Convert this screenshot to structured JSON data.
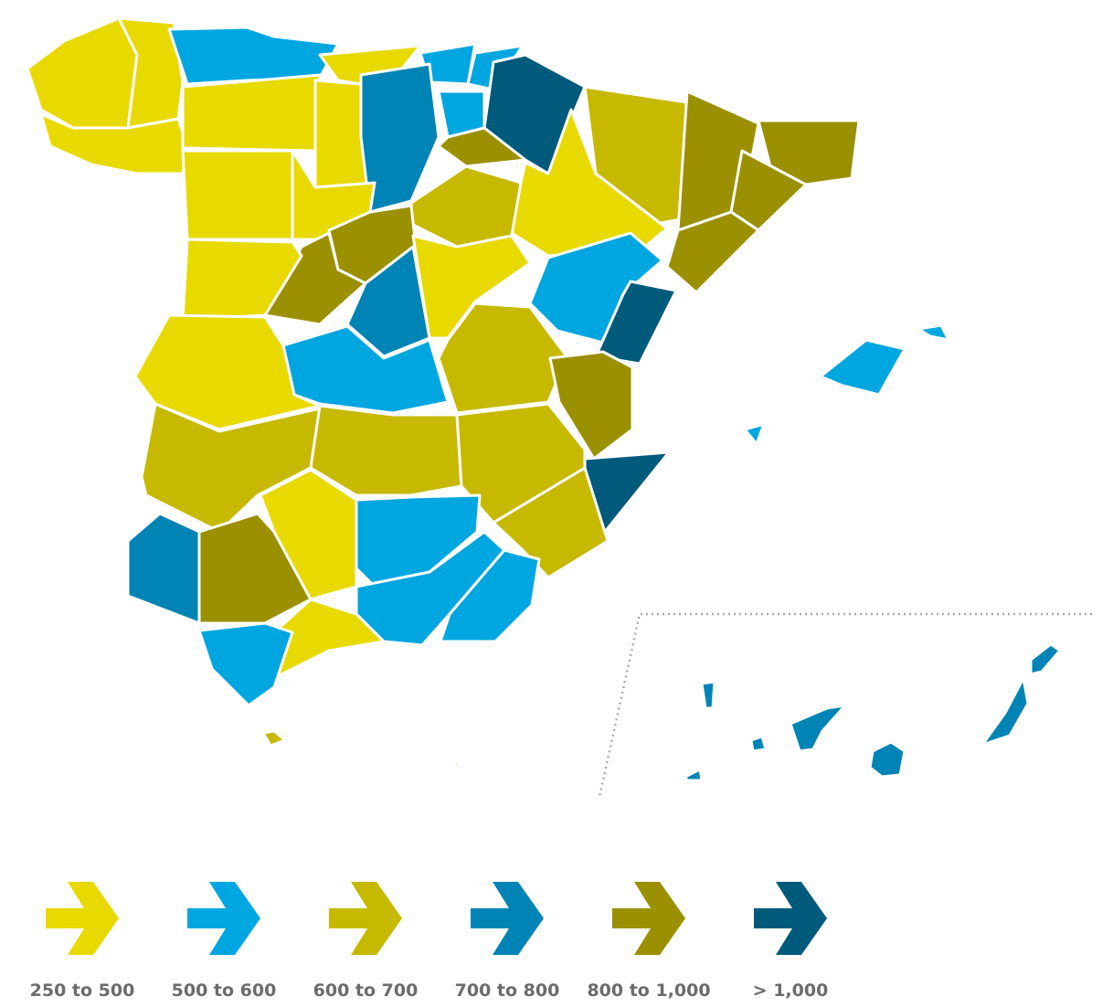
{
  "legend": [
    {
      "label": "250 to 500",
      "color": "#e8d900"
    },
    {
      "label": "500 to 600",
      "color": "#00a6e0"
    },
    {
      "label": "600 to 700",
      "color": "#c6b900"
    },
    {
      "label": "700 to 800",
      "color": "#0083b5"
    },
    {
      "label": "800 to 1,000",
      "color": "#9a9000"
    },
    {
      "label": "> 1,000",
      "color": "#005a7c"
    }
  ]
}
